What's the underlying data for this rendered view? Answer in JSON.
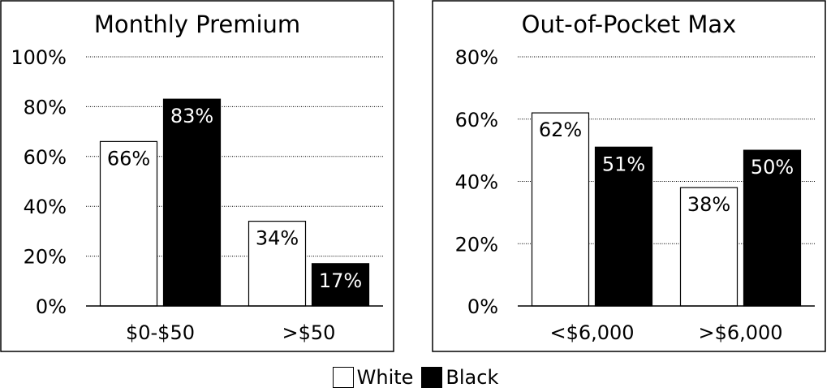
{
  "legend": {
    "items": [
      {
        "label": "White",
        "color": "#ffffff"
      },
      {
        "label": "Black",
        "color": "#000000"
      }
    ]
  },
  "chart_data": [
    {
      "type": "bar",
      "title": "Monthly Premium",
      "categories": [
        "$0-$50",
        ">$50"
      ],
      "series": [
        {
          "name": "White",
          "color": "#ffffff",
          "values": [
            66,
            34
          ],
          "labels": [
            "66%",
            "34%"
          ]
        },
        {
          "name": "Black",
          "color": "#000000",
          "values": [
            83,
            17
          ],
          "labels": [
            "83%",
            "17%"
          ]
        }
      ],
      "ylim": [
        0,
        100
      ],
      "yticks": [
        0,
        20,
        40,
        60,
        80,
        100
      ],
      "ytick_labels": [
        "0%",
        "20%",
        "40%",
        "60%",
        "80%",
        "100%"
      ],
      "grid": true,
      "xlabel": "",
      "ylabel": ""
    },
    {
      "type": "bar",
      "title": "Out-of-Pocket Max",
      "categories": [
        "<$6,000",
        ">$6,000"
      ],
      "series": [
        {
          "name": "White",
          "color": "#ffffff",
          "values": [
            62,
            38
          ],
          "labels": [
            "62%",
            "38%"
          ]
        },
        {
          "name": "Black",
          "color": "#000000",
          "values": [
            51,
            50
          ],
          "labels": [
            "51%",
            "50%"
          ]
        }
      ],
      "ylim": [
        0,
        80
      ],
      "yticks": [
        0,
        20,
        40,
        60,
        80
      ],
      "ytick_labels": [
        "0%",
        "20%",
        "40%",
        "60%",
        "80%"
      ],
      "grid": true,
      "xlabel": "",
      "ylabel": ""
    }
  ]
}
